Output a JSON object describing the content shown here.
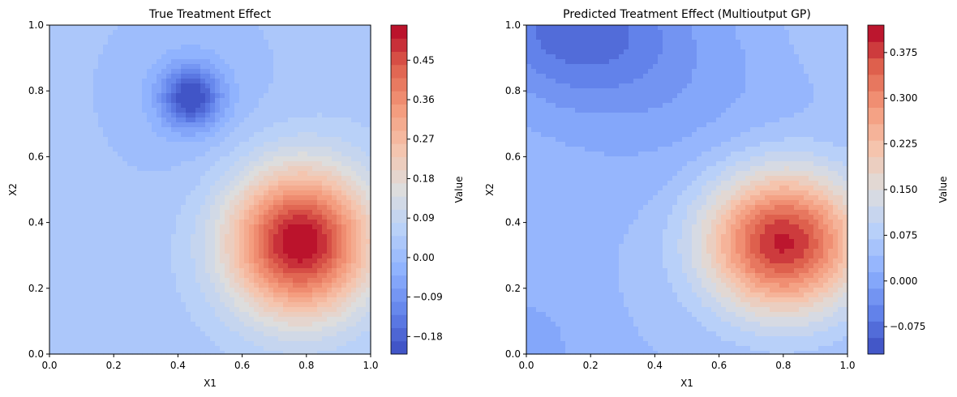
{
  "chart_data": [
    {
      "type": "contour",
      "title": "True Treatment Effect",
      "xlabel": "X1",
      "ylabel": "X2",
      "xlim": [
        0,
        1
      ],
      "ylim": [
        0,
        1
      ],
      "x_ticks": [
        "0.0",
        "0.2",
        "0.4",
        "0.6",
        "0.8",
        "1.0"
      ],
      "y_ticks": [
        "0.0",
        "0.2",
        "0.4",
        "0.6",
        "0.8",
        "1.0"
      ],
      "colormap": "coolwarm",
      "colorbar": {
        "label": "Value",
        "range": [
          -0.22,
          0.53
        ],
        "levels": 25,
        "ticks": [
          -0.18,
          -0.09,
          0.0,
          0.09,
          0.18,
          0.27,
          0.36,
          0.45
        ],
        "tick_labels": [
          "−0.18",
          "−0.09",
          "0.00",
          "0.09",
          "0.18",
          "0.27",
          "0.36",
          "0.45"
        ]
      },
      "features": [
        {
          "kind": "peak",
          "x": 0.78,
          "y": 0.34,
          "value": 0.52
        },
        {
          "kind": "trough",
          "x": 0.44,
          "y": 0.78,
          "value": -0.2
        },
        {
          "kind": "baseline",
          "value": 0.03
        }
      ]
    },
    {
      "type": "contour",
      "title": "Predicted Treatment Effect (Multioutput GP)",
      "xlabel": "X1",
      "ylabel": "X2",
      "xlim": [
        0,
        1
      ],
      "ylim": [
        0,
        1
      ],
      "x_ticks": [
        "0.0",
        "0.2",
        "0.4",
        "0.6",
        "0.8",
        "1.0"
      ],
      "y_ticks": [
        "0.0",
        "0.2",
        "0.4",
        "0.6",
        "0.8",
        "1.0"
      ],
      "colormap": "coolwarm",
      "colorbar": {
        "label": "Value",
        "range": [
          -0.12,
          0.42
        ],
        "levels": 20,
        "ticks": [
          -0.075,
          0.0,
          0.075,
          0.15,
          0.225,
          0.3,
          0.375
        ],
        "tick_labels": [
          "−0.075",
          "0.000",
          "0.075",
          "0.150",
          "0.225",
          "0.300",
          "0.375"
        ]
      },
      "features": [
        {
          "kind": "peak",
          "x": 0.8,
          "y": 0.34,
          "value": 0.39
        },
        {
          "kind": "trough",
          "x": 0.15,
          "y": 1.0,
          "value": -0.11
        },
        {
          "kind": "baseline",
          "value": 0.04
        }
      ]
    }
  ]
}
